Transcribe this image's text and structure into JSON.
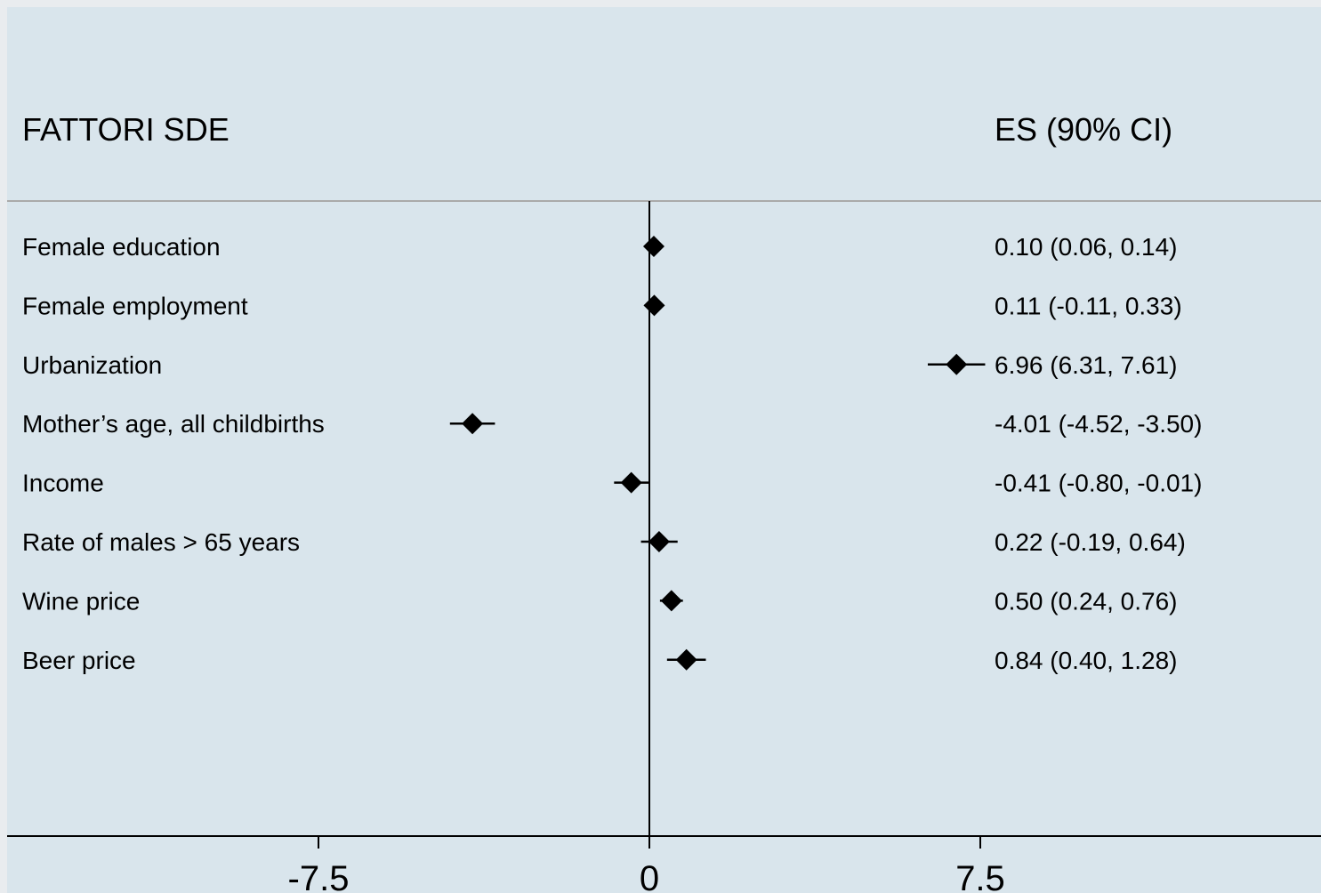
{
  "chart_data": {
    "type": "forest",
    "header": {
      "left": "FATTORI SDE",
      "right": "ES (90% CI)"
    },
    "rows": [
      {
        "label": "Female education",
        "es": 0.1,
        "lo": 0.06,
        "hi": 0.14,
        "text": "0.10 (0.06, 0.14)"
      },
      {
        "label": "Female employment",
        "es": 0.11,
        "lo": -0.11,
        "hi": 0.33,
        "text": "0.11 (-0.11, 0.33)"
      },
      {
        "label": "Urbanization",
        "es": 6.96,
        "lo": 6.31,
        "hi": 7.61,
        "text": "6.96 (6.31, 7.61)"
      },
      {
        "label": "Mother’s age, all childbirths",
        "es": -4.01,
        "lo": -4.52,
        "hi": -3.5,
        "text": "-4.01 (-4.52, -3.50)"
      },
      {
        "label": "Income",
        "es": -0.41,
        "lo": -0.8,
        "hi": -0.01,
        "text": "-0.41 (-0.80, -0.01)"
      },
      {
        "label": "Rate of males > 65 years",
        "es": 0.22,
        "lo": -0.19,
        "hi": 0.64,
        "text": "0.22 (-0.19, 0.64)"
      },
      {
        "label": "Wine price",
        "es": 0.5,
        "lo": 0.24,
        "hi": 0.76,
        "text": "0.50 (0.24, 0.76)"
      },
      {
        "label": "Beer price",
        "es": 0.84,
        "lo": 0.4,
        "hi": 1.28,
        "text": "0.84 (0.40, 1.28)"
      }
    ],
    "x_ticks": [
      -7.5,
      0,
      7.5
    ],
    "x_tick_labels": [
      "-7.5",
      "0",
      "7.5"
    ],
    "reference_line": 0,
    "colors": {
      "plot_bg": "#d9e5ec",
      "outer_bg": "#e9ecef",
      "marker": "#000000"
    }
  }
}
